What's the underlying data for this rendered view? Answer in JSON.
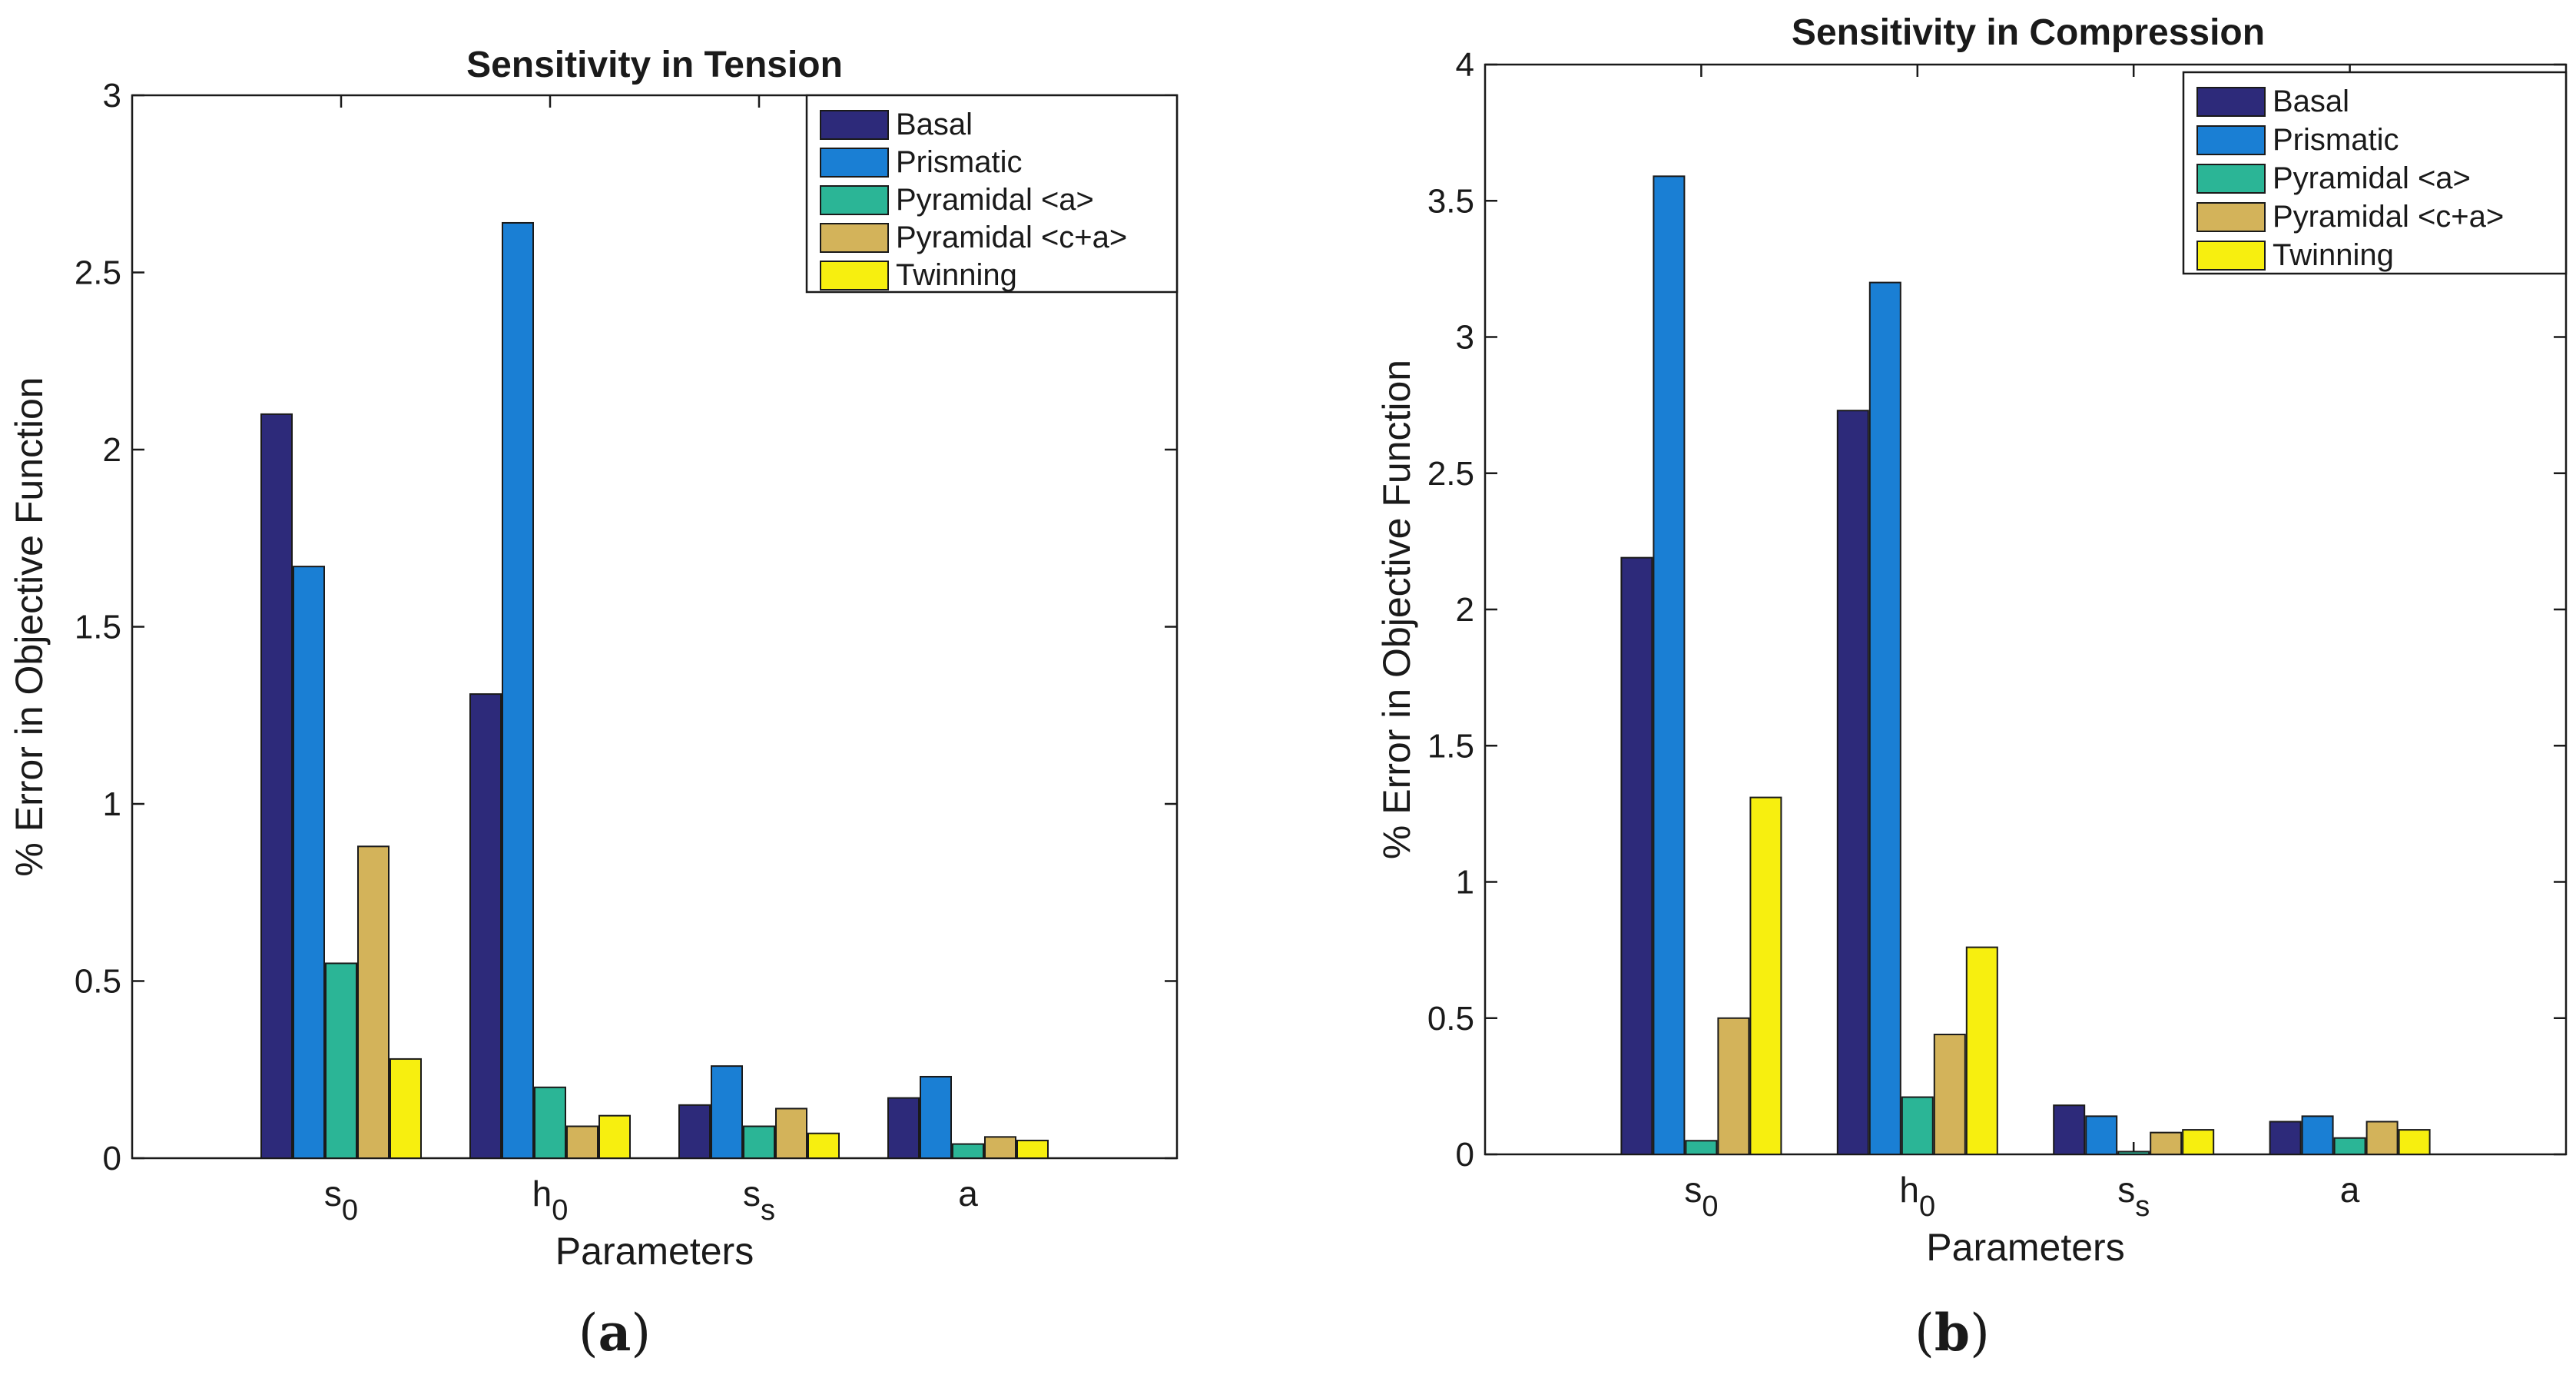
{
  "chart_data": [
    {
      "type": "bar",
      "panel_label": "a",
      "title": "Sensitivity in Tension",
      "xlabel": "Parameters",
      "ylabel": "% Error in Objective Function",
      "categories": [
        {
          "base": "s",
          "sub": "0"
        },
        {
          "base": "h",
          "sub": "0"
        },
        {
          "base": "s",
          "sub": "s"
        },
        {
          "base": "a",
          "sub": ""
        }
      ],
      "ylim": [
        0,
        3
      ],
      "yticks": [
        0,
        0.5,
        1,
        1.5,
        2,
        2.5,
        3
      ],
      "ytick_labels": [
        "0",
        "0.5",
        "1",
        "1.5",
        "2",
        "2.5",
        "3"
      ],
      "legend_position": "top-right",
      "series": [
        {
          "name": "Basal",
          "color": "#2d2a7a",
          "values": [
            2.1,
            1.31,
            0.15,
            0.17
          ]
        },
        {
          "name": "Prismatic",
          "color": "#1a7fd4",
          "values": [
            1.67,
            2.64,
            0.26,
            0.23
          ]
        },
        {
          "name": "Pyramidal <a>",
          "color": "#2bb596",
          "values": [
            0.55,
            0.2,
            0.09,
            0.04
          ]
        },
        {
          "name": "Pyramidal <c+a>",
          "color": "#d3b35a",
          "values": [
            0.88,
            0.09,
            0.14,
            0.06
          ]
        },
        {
          "name": "Twinning",
          "color": "#f7ef0f",
          "values": [
            0.28,
            0.12,
            0.07,
            0.05
          ]
        }
      ]
    },
    {
      "type": "bar",
      "panel_label": "b",
      "title": "Sensitivity in Compression",
      "xlabel": "Parameters",
      "ylabel": "% Error in Objective Function",
      "categories": [
        {
          "base": "s",
          "sub": "0"
        },
        {
          "base": "h",
          "sub": "0"
        },
        {
          "base": "s",
          "sub": "s"
        },
        {
          "base": "a",
          "sub": ""
        }
      ],
      "ylim": [
        0,
        4
      ],
      "yticks": [
        0,
        0.5,
        1,
        1.5,
        2,
        2.5,
        3,
        3.5,
        4
      ],
      "ytick_labels": [
        "0",
        "0.5",
        "1",
        "1.5",
        "2",
        "2.5",
        "3",
        "3.5",
        "4"
      ],
      "legend_position": "top-right",
      "series": [
        {
          "name": "Basal",
          "color": "#2d2a7a",
          "values": [
            2.19,
            2.73,
            0.18,
            0.12
          ]
        },
        {
          "name": "Prismatic",
          "color": "#1a7fd4",
          "values": [
            3.59,
            3.2,
            0.14,
            0.14
          ]
        },
        {
          "name": "Pyramidal <a>",
          "color": "#2bb596",
          "values": [
            0.05,
            0.21,
            0.01,
            0.06
          ]
        },
        {
          "name": "Pyramidal <c+a>",
          "color": "#d3b35a",
          "values": [
            0.5,
            0.44,
            0.08,
            0.12
          ]
        },
        {
          "name": "Twinning",
          "color": "#f7ef0f",
          "values": [
            1.31,
            0.76,
            0.09,
            0.09
          ]
        }
      ]
    }
  ]
}
